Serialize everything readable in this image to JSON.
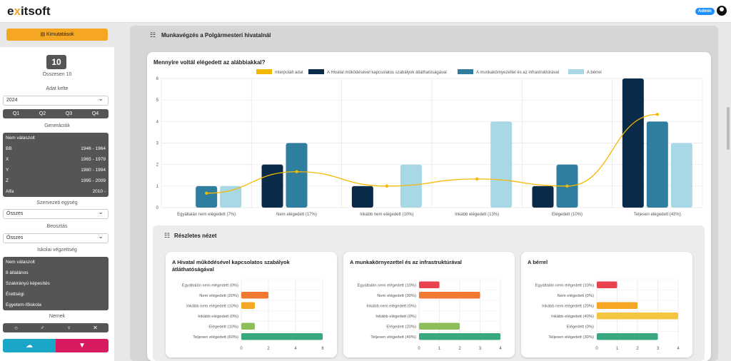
{
  "header": {
    "logo_prefix": "e",
    "logo_x": "x",
    "logo_suffix": "itsoft",
    "admin_label": "Admin"
  },
  "sidebar": {
    "report_button": "Kimutatások",
    "count": "10",
    "count_label": "Összesen 10",
    "date_label": "Adat kelte",
    "year": "2024",
    "quarters": [
      "Q1",
      "Q2",
      "Q3",
      "Q4"
    ],
    "generations_label": "Generációk",
    "generations": [
      {
        "name": "Nem válaszolt",
        "range": ""
      },
      {
        "name": "BB",
        "range": "1946 - 1964"
      },
      {
        "name": "X",
        "range": "1965 - 1979"
      },
      {
        "name": "Y",
        "range": "1980 - 1994"
      },
      {
        "name": "Z",
        "range": "1995 - 2009"
      },
      {
        "name": "Alfa",
        "range": "2010 -"
      }
    ],
    "org_unit_label": "Szervezeti egység",
    "org_unit_value": "Összes",
    "position_label": "Beosztás",
    "position_value": "Összes",
    "education_label": "Iskolai végzettség",
    "education": [
      "Nem válaszolt",
      "8 általános",
      "Szakirányú képesítés",
      "Érettségi",
      "Egyetem-főiskola"
    ],
    "gender_label": "Nemek",
    "genders": [
      "○",
      "♂",
      "♀",
      "✕"
    ]
  },
  "main": {
    "panel_title": "Munkavégzés a Polgármesteri hivatalnál",
    "detail_title": "Részletes nézet"
  },
  "colors": {
    "interp": "#f5b800",
    "series1": "#0a2a4a",
    "series2": "#2f7ea0",
    "series3": "#a8d8e6",
    "orange": "#f5a623",
    "red": "#e8424e",
    "orange2": "#f07830",
    "lightorange": "#f5a623",
    "yellow": "#f5c542",
    "lightgreen": "#8cbf5a",
    "green": "#3aa87e"
  },
  "chart_data": [
    {
      "type": "bar",
      "title": "Mennyire voltál elégedett az alábbiakkal?",
      "categories": [
        "Egyáltalán nem elégedett (7%)",
        "Nem elégedett (17%)",
        "Inkább nem elégedett (10%)",
        "Inkább elégedett (13%)",
        "Elégedett (10%)",
        "Teljesen elégedett (43%)"
      ],
      "series": [
        {
          "name": "A Hivatal működésével kapcsolatos szabályok átláthatóságával",
          "values": [
            0,
            2,
            1,
            0,
            1,
            6
          ]
        },
        {
          "name": "A munkakörnyezettel és az infrastruktúrával",
          "values": [
            1,
            3,
            0,
            0,
            2,
            4
          ]
        },
        {
          "name": "A bérrel",
          "values": [
            1,
            0,
            2,
            4,
            0,
            3
          ]
        }
      ],
      "line": {
        "name": "Interpolált adat",
        "values": [
          0.67,
          1.67,
          1.0,
          1.33,
          1.0,
          4.33
        ]
      },
      "ylim": [
        0,
        6
      ],
      "yticks": [
        0,
        1,
        2,
        3,
        4,
        5,
        6
      ],
      "legend": "top"
    },
    {
      "type": "bar",
      "orientation": "horizontal",
      "title": "A Hivatal működésével kapcsolatos szabályok átláthatóságával",
      "categories": [
        "Egyáltalán nem elégedett (0%)",
        "Nem elégedett (20%)",
        "Inkább nem elégedett (10%)",
        "Inkább elégedett (0%)",
        "Elégedett (10%)",
        "Teljesen elégedett (60%)"
      ],
      "values": [
        0,
        2,
        1,
        0,
        1,
        6
      ],
      "xlim": [
        0,
        6
      ],
      "xticks": [
        0,
        2,
        4,
        6
      ]
    },
    {
      "type": "bar",
      "orientation": "horizontal",
      "title": "A munkakörnyezettel és az infrastruktúrával",
      "categories": [
        "Egyáltalán nem elégedett (10%)",
        "Nem elégedett (30%)",
        "Inkább nem elégedett (0%)",
        "Inkább elégedett (0%)",
        "Elégedett (20%)",
        "Teljesen elégedett (40%)"
      ],
      "values": [
        1,
        3,
        0,
        0,
        2,
        4
      ],
      "xlim": [
        0,
        4
      ],
      "xticks": [
        0,
        1,
        2,
        3,
        4
      ]
    },
    {
      "type": "bar",
      "orientation": "horizontal",
      "title": "A bérrel",
      "categories": [
        "Egyáltalán nem elégedett (10%)",
        "Nem elégedett (0%)",
        "Inkább nem elégedett (20%)",
        "Inkább elégedett (40%)",
        "Elégedett (0%)",
        "Teljesen elégedett (30%)"
      ],
      "values": [
        1,
        0,
        2,
        4,
        0,
        3
      ],
      "xlim": [
        0,
        4
      ],
      "xticks": [
        0,
        1,
        2,
        3,
        4
      ]
    }
  ]
}
